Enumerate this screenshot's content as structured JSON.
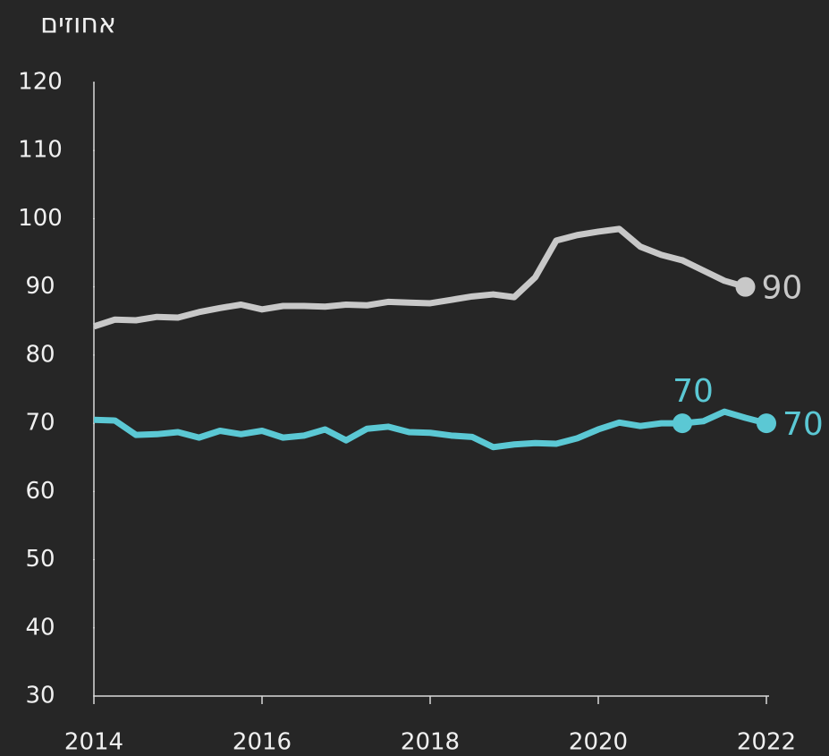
{
  "chart_data": {
    "type": "line",
    "y_axis_label": "אחוזים",
    "x": [
      2014,
      2014.25,
      2014.5,
      2014.75,
      2015,
      2015.25,
      2015.5,
      2015.75,
      2016,
      2016.25,
      2016.5,
      2016.75,
      2017,
      2017.25,
      2017.5,
      2017.75,
      2018,
      2018.25,
      2018.5,
      2018.75,
      2019,
      2019.25,
      2019.5,
      2019.75,
      2020,
      2020.25,
      2020.5,
      2020.75,
      2021,
      2021.25,
      2021.5,
      2021.75,
      2022
    ],
    "series": [
      {
        "color": "#c8c8c8",
        "values": [
          84.2,
          85.2,
          85.1,
          85.6,
          85.5,
          86.3,
          86.9,
          87.4,
          86.7,
          87.2,
          87.2,
          87.1,
          87.4,
          87.3,
          87.8,
          87.7,
          87.6,
          88.1,
          88.6,
          88.9,
          88.5,
          91.4,
          96.8,
          97.6,
          98.1,
          98.5,
          95.9,
          94.7,
          93.9,
          92.4,
          90.9,
          90,
          null
        ],
        "value_labels": [
          null,
          null,
          null,
          null,
          null,
          null,
          null,
          null,
          null,
          null,
          null,
          null,
          null,
          null,
          null,
          null,
          null,
          null,
          null,
          null,
          null,
          null,
          null,
          null,
          null,
          null,
          null,
          null,
          null,
          null,
          null,
          "90",
          null
        ]
      },
      {
        "color": "#5bc8d4",
        "values": [
          70.5,
          70.4,
          68.3,
          68.4,
          68.7,
          67.9,
          68.9,
          68.4,
          68.9,
          67.9,
          68.2,
          69.1,
          67.5,
          69.2,
          69.5,
          68.7,
          68.6,
          68.2,
          68.0,
          66.5,
          66.9,
          67.1,
          67.0,
          67.8,
          69.1,
          70.1,
          69.6,
          70.0,
          70,
          70.3,
          71.7,
          70.8,
          70
        ],
        "value_labels": [
          null,
          null,
          null,
          null,
          null,
          null,
          null,
          null,
          null,
          null,
          null,
          null,
          null,
          null,
          null,
          null,
          null,
          null,
          null,
          null,
          null,
          null,
          null,
          null,
          null,
          null,
          null,
          null,
          "70",
          null,
          null,
          null,
          "70"
        ]
      }
    ],
    "xlim": [
      2014,
      2022
    ],
    "xticks": [
      2014,
      2016,
      2018,
      2020,
      2022
    ],
    "ylim": [
      30,
      120
    ],
    "yticks": [
      30,
      40,
      50,
      60,
      70,
      80,
      90,
      100,
      110,
      120
    ]
  }
}
